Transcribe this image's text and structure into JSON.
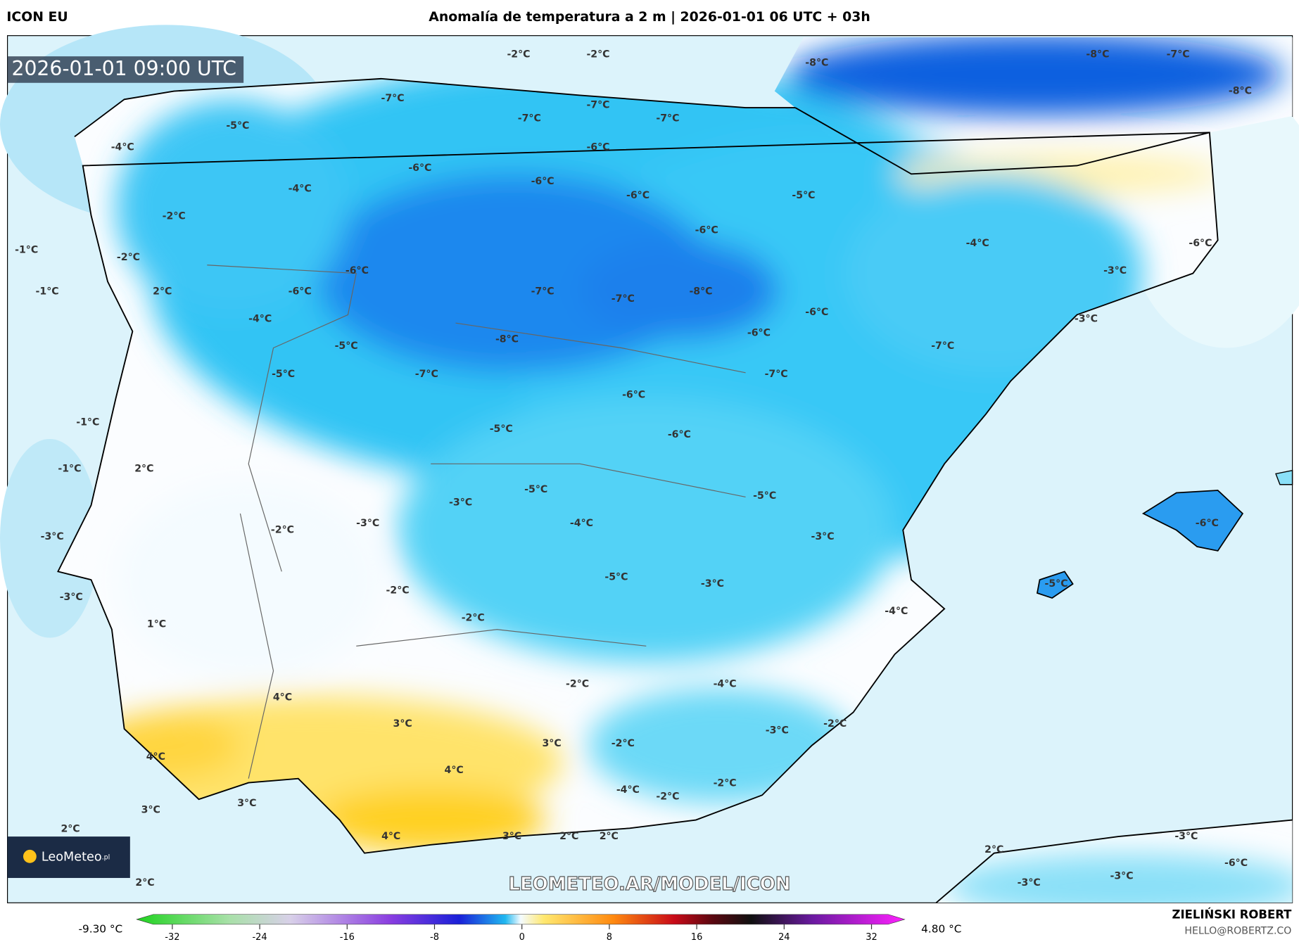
{
  "header": {
    "model": "ICON EU",
    "title": "Anomalía de temperatura a 2 m | 2026-01-01 06 UTC + 03h",
    "timestamp": "2026-01-01 09:00 UTC"
  },
  "map_labels": [
    "-2°C",
    "-2°C",
    "-8°C",
    "-8°C",
    "-7°C",
    "-8°C",
    "-7°C",
    "-7°C",
    "-7°C",
    "-7°C",
    "-5°C",
    "-4°C",
    "-6°C",
    "-6°C",
    "-6°C",
    "-4°C",
    "-6°C",
    "-5°C",
    "-2°C",
    "-6°C",
    "-4°C",
    "-6°C",
    "-1°C",
    "-2°C",
    "-6°C",
    "-3°C",
    "-1°C",
    "2°C",
    "-6°C",
    "-7°C",
    "-7°C",
    "-8°C",
    "-6°C",
    "-4°C",
    "-3°C",
    "-6°C",
    "-8°C",
    "-5°C",
    "-7°C",
    "-5°C",
    "-7°C",
    "-7°C",
    "-6°C",
    "-1°C",
    "-5°C",
    "-6°C",
    "-1°C",
    "2°C",
    "-5°C",
    "-5°C",
    "-3°C",
    "-3°C",
    "-4°C",
    "-6°C",
    "-2°C",
    "-3°C",
    "-3°C",
    "-5°C",
    "-3°C",
    "-5°C",
    "-2°C",
    "-3°C",
    "-4°C",
    "-2°C",
    "1°C",
    "4°C",
    "-2°C",
    "-4°C",
    "3°C",
    "-3°C",
    "-2°C",
    "3°C",
    "-2°C",
    "4°C",
    "4°C",
    "-2°C",
    "-4°C",
    "-2°C",
    "3°C",
    "3°C",
    "2°C",
    "4°C",
    "3°C",
    "2°C",
    "2°C",
    "-3°C",
    "2°C",
    "-6°C",
    "-3°C",
    "-3°C",
    "2°C"
  ],
  "logo": {
    "name": "LeoMeteo",
    "suffix": ".pl"
  },
  "watermark": "LEOMETEO.AR/MODEL/ICON",
  "colorbar": {
    "min_label": "-9.30 °C",
    "max_label": "4.80 °C",
    "ticks": [
      -32,
      -24,
      -16,
      -8,
      0,
      8,
      16,
      24,
      32
    ]
  },
  "credits": {
    "author": "ZIELIŃSKI ROBERT",
    "contact": "HELLO@ROBERTZ.CO"
  }
}
